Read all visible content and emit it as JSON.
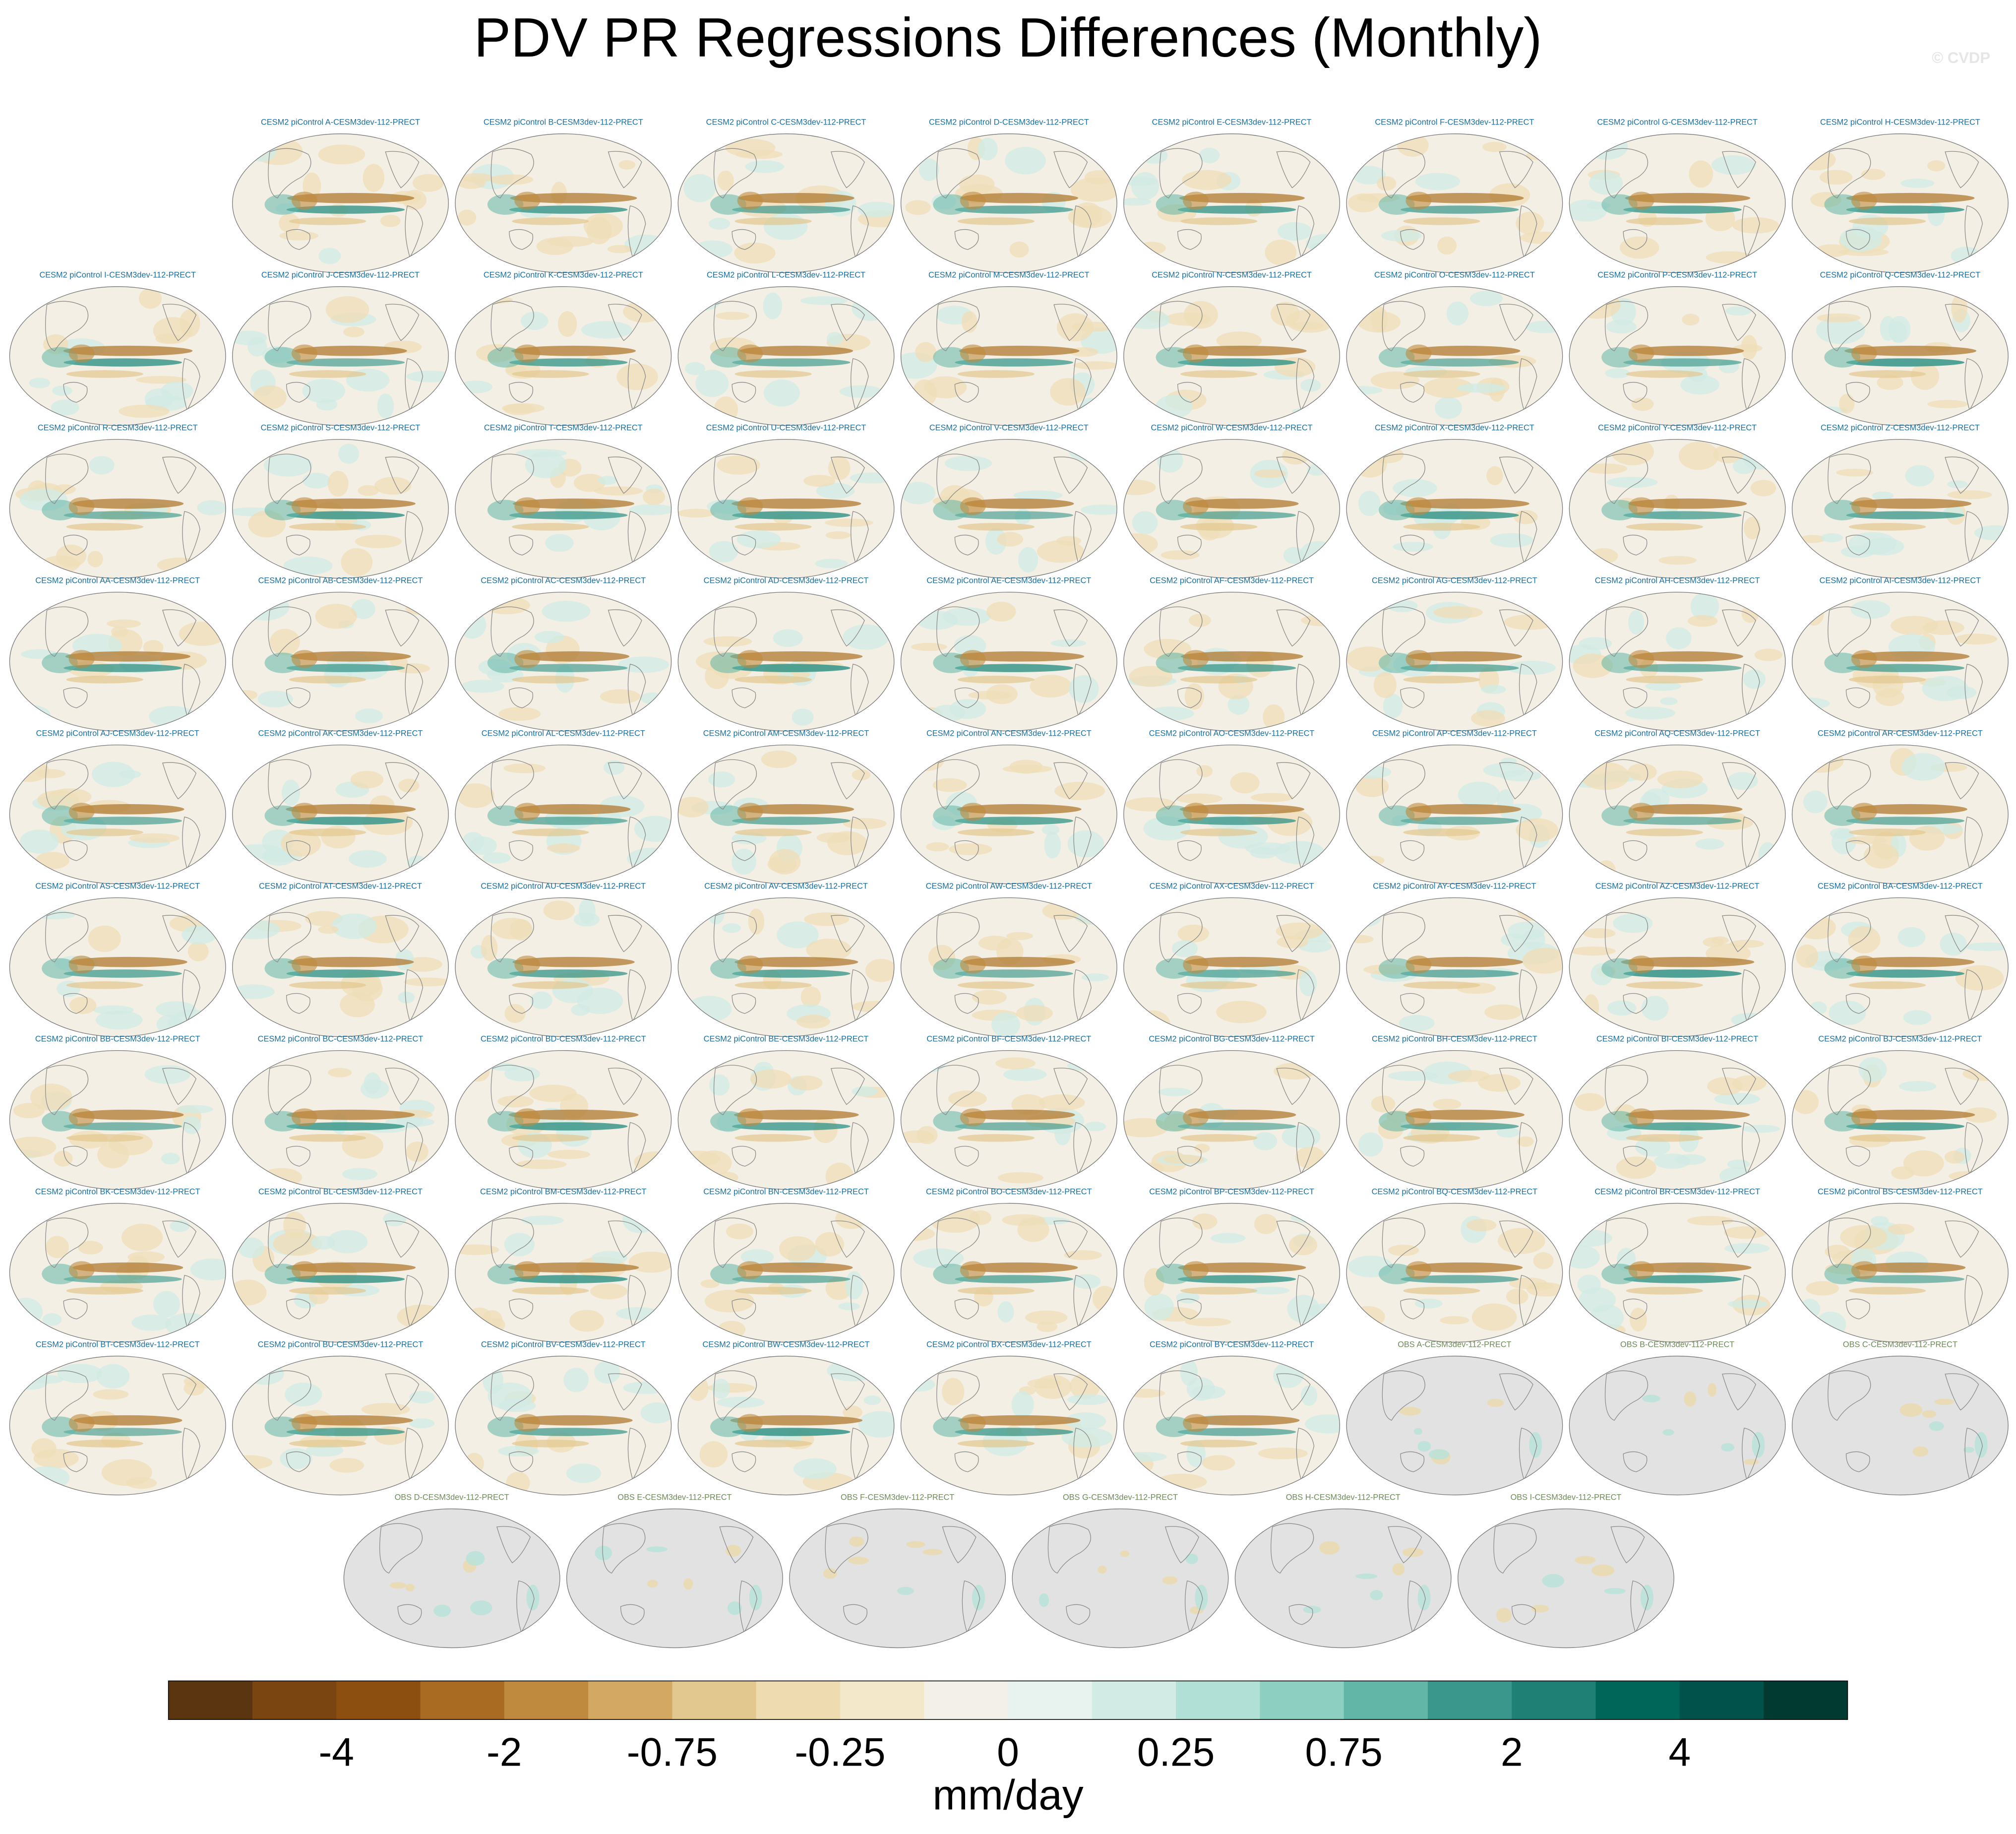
{
  "title": "PDV PR Regressions Differences (Monthly)",
  "watermark": "© CVDP",
  "rows": [
    [
      "CESM2 piControl A-CESM3dev-112-PRECT",
      "CESM2 piControl B-CESM3dev-112-PRECT",
      "CESM2 piControl C-CESM3dev-112-PRECT",
      "CESM2 piControl D-CESM3dev-112-PRECT",
      "CESM2 piControl E-CESM3dev-112-PRECT",
      "CESM2 piControl F-CESM3dev-112-PRECT",
      "CESM2 piControl G-CESM3dev-112-PRECT",
      "CESM2 piControl H-CESM3dev-112-PRECT"
    ],
    [
      "CESM2 piControl I-CESM3dev-112-PRECT",
      "CESM2 piControl J-CESM3dev-112-PRECT",
      "CESM2 piControl K-CESM3dev-112-PRECT",
      "CESM2 piControl L-CESM3dev-112-PRECT",
      "CESM2 piControl M-CESM3dev-112-PRECT",
      "CESM2 piControl N-CESM3dev-112-PRECT",
      "CESM2 piControl O-CESM3dev-112-PRECT",
      "CESM2 piControl P-CESM3dev-112-PRECT",
      "CESM2 piControl Q-CESM3dev-112-PRECT"
    ],
    [
      "CESM2 piControl R-CESM3dev-112-PRECT",
      "CESM2 piControl S-CESM3dev-112-PRECT",
      "CESM2 piControl T-CESM3dev-112-PRECT",
      "CESM2 piControl U-CESM3dev-112-PRECT",
      "CESM2 piControl V-CESM3dev-112-PRECT",
      "CESM2 piControl W-CESM3dev-112-PRECT",
      "CESM2 piControl X-CESM3dev-112-PRECT",
      "CESM2 piControl Y-CESM3dev-112-PRECT",
      "CESM2 piControl Z-CESM3dev-112-PRECT"
    ],
    [
      "CESM2 piControl AA-CESM3dev-112-PRECT",
      "CESM2 piControl AB-CESM3dev-112-PRECT",
      "CESM2 piControl AC-CESM3dev-112-PRECT",
      "CESM2 piControl AD-CESM3dev-112-PRECT",
      "CESM2 piControl AE-CESM3dev-112-PRECT",
      "CESM2 piControl AF-CESM3dev-112-PRECT",
      "CESM2 piControl AG-CESM3dev-112-PRECT",
      "CESM2 piControl AH-CESM3dev-112-PRECT",
      "CESM2 piControl AI-CESM3dev-112-PRECT"
    ],
    [
      "CESM2 piControl AJ-CESM3dev-112-PRECT",
      "CESM2 piControl AK-CESM3dev-112-PRECT",
      "CESM2 piControl AL-CESM3dev-112-PRECT",
      "CESM2 piControl AM-CESM3dev-112-PRECT",
      "CESM2 piControl AN-CESM3dev-112-PRECT",
      "CESM2 piControl AO-CESM3dev-112-PRECT",
      "CESM2 piControl AP-CESM3dev-112-PRECT",
      "CESM2 piControl AQ-CESM3dev-112-PRECT",
      "CESM2 piControl AR-CESM3dev-112-PRECT"
    ],
    [
      "CESM2 piControl AS-CESM3dev-112-PRECT",
      "CESM2 piControl AT-CESM3dev-112-PRECT",
      "CESM2 piControl AU-CESM3dev-112-PRECT",
      "CESM2 piControl AV-CESM3dev-112-PRECT",
      "CESM2 piControl AW-CESM3dev-112-PRECT",
      "CESM2 piControl AX-CESM3dev-112-PRECT",
      "CESM2 piControl AY-CESM3dev-112-PRECT",
      "CESM2 piControl AZ-CESM3dev-112-PRECT",
      "CESM2 piControl BA-CESM3dev-112-PRECT"
    ],
    [
      "CESM2 piControl BB-CESM3dev-112-PRECT",
      "CESM2 piControl BC-CESM3dev-112-PRECT",
      "CESM2 piControl BD-CESM3dev-112-PRECT",
      "CESM2 piControl BE-CESM3dev-112-PRECT",
      "CESM2 piControl BF-CESM3dev-112-PRECT",
      "CESM2 piControl BG-CESM3dev-112-PRECT",
      "CESM2 piControl BH-CESM3dev-112-PRECT",
      "CESM2 piControl BI-CESM3dev-112-PRECT",
      "CESM2 piControl BJ-CESM3dev-112-PRECT"
    ],
    [
      "CESM2 piControl BK-CESM3dev-112-PRECT",
      "CESM2 piControl BL-CESM3dev-112-PRECT",
      "CESM2 piControl BM-CESM3dev-112-PRECT",
      "CESM2 piControl BN-CESM3dev-112-PRECT",
      "CESM2 piControl BO-CESM3dev-112-PRECT",
      "CESM2 piControl BP-CESM3dev-112-PRECT",
      "CESM2 piControl BQ-CESM3dev-112-PRECT",
      "CESM2 piControl BR-CESM3dev-112-PRECT",
      "CESM2 piControl BS-CESM3dev-112-PRECT"
    ],
    [
      "CESM2 piControl BT-CESM3dev-112-PRECT",
      "CESM2 piControl BU-CESM3dev-112-PRECT",
      "CESM2 piControl BV-CESM3dev-112-PRECT",
      "CESM2 piControl BW-CESM3dev-112-PRECT",
      "CESM2 piControl BX-CESM3dev-112-PRECT",
      "CESM2 piControl BY-CESM3dev-112-PRECT",
      "OBS A-CESM3dev-112-PRECT",
      "OBS B-CESM3dev-112-PRECT",
      "OBS C-CESM3dev-112-PRECT"
    ],
    [
      "OBS D-CESM3dev-112-PRECT",
      "OBS E-CESM3dev-112-PRECT",
      "OBS F-CESM3dev-112-PRECT",
      "OBS G-CESM3dev-112-PRECT",
      "OBS H-CESM3dev-112-PRECT",
      "OBS I-CESM3dev-112-PRECT"
    ]
  ],
  "colorbar": {
    "colors": [
      "#5b3410",
      "#7a4510",
      "#8c4f10",
      "#a96a22",
      "#c08a3e",
      "#d3a862",
      "#e2c78e",
      "#eedcb0",
      "#f3e8c9",
      "#f3f0ea",
      "#e8f2ef",
      "#d2ebe5",
      "#b0e0d6",
      "#8dd0c2",
      "#62b6a8",
      "#3a978b",
      "#1f8076",
      "#00665a",
      "#00524a",
      "#003a30"
    ],
    "tick_labels": [
      "-4",
      "-2",
      "-0.75",
      "-0.25",
      "0",
      "0.25",
      "0.75",
      "2",
      "4"
    ],
    "unit": "mm/day"
  }
}
